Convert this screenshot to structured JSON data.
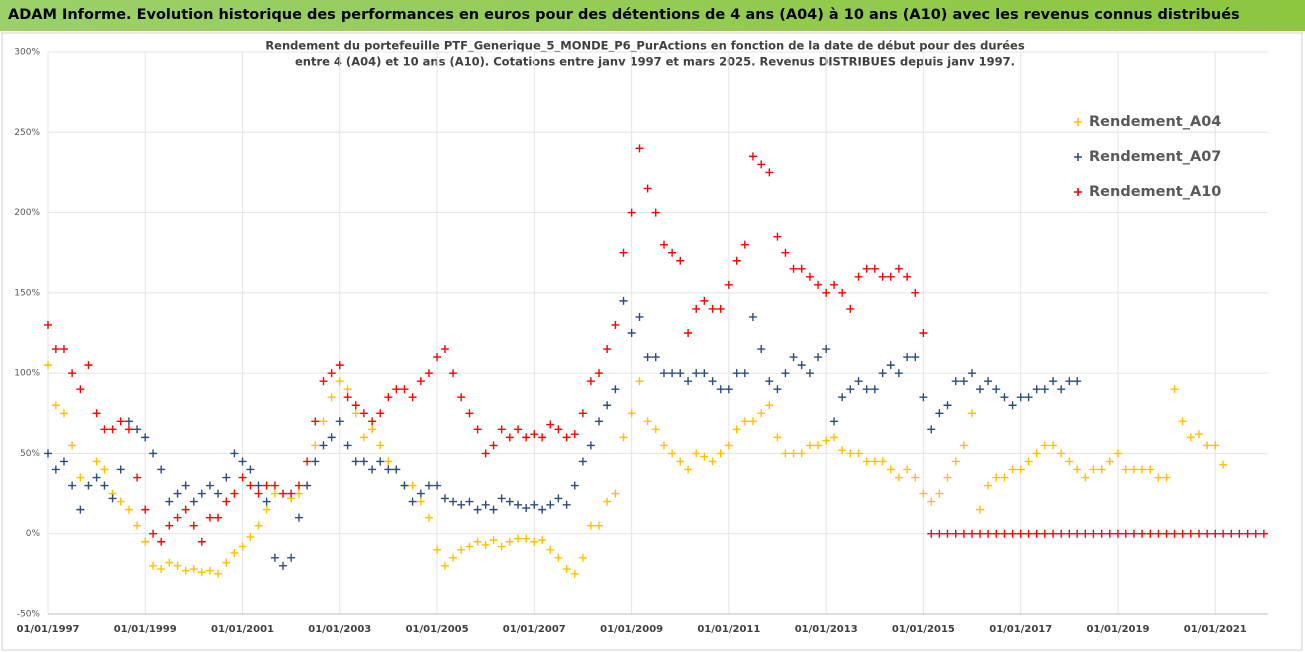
{
  "header": "ADAM Informe. Evolution historique des performances en euros pour des détentions de 4 ans (A04) à 10 ans (A10) avec les revenus connus distribués",
  "chart_data": {
    "type": "scatter",
    "title": [
      "Rendement du portefeuille PTF_Generique_5_MONDE_P6_PurActions  en fonction de la date de début pour des durées",
      "entre 4 (A04) et 10 ans (A10). Cotations  entre janv 1997 et mars 2025. Revenus DISTRIBUES depuis janv 1997."
    ],
    "x": [
      "1997-01-01",
      "1997-03-01",
      "1997-05-01",
      "1997-07-01",
      "1997-09-01",
      "1997-11-01",
      "1998-01-01",
      "1998-03-01",
      "1998-05-01",
      "1998-07-01",
      "1998-09-01",
      "1998-11-01",
      "1999-01-01",
      "1999-03-01",
      "1999-05-01",
      "1999-07-01",
      "1999-09-01",
      "1999-11-01",
      "2000-01-01",
      "2000-03-01",
      "2000-05-01",
      "2000-07-01",
      "2000-09-01",
      "2000-11-01",
      "2001-01-01",
      "2001-03-01",
      "2001-05-01",
      "2001-07-01",
      "2001-09-01",
      "2001-11-01",
      "2002-01-01",
      "2002-03-01",
      "2002-05-01",
      "2002-07-01",
      "2002-09-01",
      "2002-11-01",
      "2003-01-01",
      "2003-03-01",
      "2003-05-01",
      "2003-07-01",
      "2003-09-01",
      "2003-11-01",
      "2004-01-01",
      "2004-03-01",
      "2004-05-01",
      "2004-07-01",
      "2004-09-01",
      "2004-11-01",
      "2005-01-01",
      "2005-03-01",
      "2005-05-01",
      "2005-07-01",
      "2005-09-01",
      "2005-11-01",
      "2006-01-01",
      "2006-03-01",
      "2006-05-01",
      "2006-07-01",
      "2006-09-01",
      "2006-11-01",
      "2007-01-01",
      "2007-03-01",
      "2007-05-01",
      "2007-07-01",
      "2007-09-01",
      "2007-11-01",
      "2008-01-01",
      "2008-03-01",
      "2008-05-01",
      "2008-07-01",
      "2008-09-01",
      "2008-11-01",
      "2009-01-01",
      "2009-03-01",
      "2009-05-01",
      "2009-07-01",
      "2009-09-01",
      "2009-11-01",
      "2010-01-01",
      "2010-03-01",
      "2010-05-01",
      "2010-07-01",
      "2010-09-01",
      "2010-11-01",
      "2011-01-01",
      "2011-03-01",
      "2011-05-01",
      "2011-07-01",
      "2011-09-01",
      "2011-11-01",
      "2012-01-01",
      "2012-03-01",
      "2012-05-01",
      "2012-07-01",
      "2012-09-01",
      "2012-11-01",
      "2013-01-01",
      "2013-03-01",
      "2013-05-01",
      "2013-07-01",
      "2013-09-01",
      "2013-11-01",
      "2014-01-01",
      "2014-03-01",
      "2014-05-01",
      "2014-07-01",
      "2014-09-01",
      "2014-11-01",
      "2015-01-01",
      "2015-03-01",
      "2015-05-01",
      "2015-07-01",
      "2015-09-01",
      "2015-11-01",
      "2016-01-01",
      "2016-03-01",
      "2016-05-01",
      "2016-07-01",
      "2016-09-01",
      "2016-11-01",
      "2017-01-01",
      "2017-03-01",
      "2017-05-01",
      "2017-07-01",
      "2017-09-01",
      "2017-11-01",
      "2018-01-01",
      "2018-03-01",
      "2018-05-01",
      "2018-07-01",
      "2018-09-01",
      "2018-11-01",
      "2019-01-01",
      "2019-03-01",
      "2019-05-01",
      "2019-07-01",
      "2019-09-01",
      "2019-11-01",
      "2020-01-01",
      "2020-03-01",
      "2020-05-01",
      "2020-07-01",
      "2020-09-01",
      "2020-11-01",
      "2021-01-01",
      "2021-03-01",
      "2021-05-01",
      "2021-07-01",
      "2021-09-01",
      "2021-11-01",
      "2022-01-01"
    ],
    "series": [
      {
        "name": "Rendement_A04",
        "color": "#ffc000",
        "values": [
          105,
          80,
          75,
          55,
          35,
          30,
          45,
          40,
          25,
          20,
          15,
          5,
          -5,
          -20,
          -22,
          -18,
          -20,
          -23,
          -22,
          -24,
          -23,
          -25,
          -18,
          -12,
          -8,
          -2,
          5,
          15,
          25,
          25,
          22,
          25,
          30,
          55,
          70,
          85,
          95,
          90,
          75,
          60,
          65,
          55,
          45,
          40,
          30,
          30,
          20,
          10,
          -10,
          -20,
          -15,
          -10,
          -8,
          -5,
          -7,
          -4,
          -8,
          -5,
          -3,
          -3,
          -5,
          -4,
          -10,
          -15,
          -22,
          -25,
          -15,
          5,
          5,
          20,
          25,
          60,
          75,
          95,
          70,
          65,
          55,
          50,
          45,
          40,
          50,
          48,
          45,
          50,
          55,
          65,
          70,
          70,
          75,
          80,
          60,
          50,
          50,
          50,
          55,
          55,
          58,
          60,
          52,
          50,
          50,
          45,
          45,
          45,
          40,
          35,
          40,
          35,
          25,
          20,
          25,
          35,
          45,
          55,
          75,
          15,
          30,
          35,
          35,
          40,
          40,
          45,
          50,
          55,
          55,
          50,
          45,
          40,
          35,
          40,
          40,
          45,
          50,
          40,
          40,
          40,
          40,
          35,
          35,
          90,
          70,
          60,
          62,
          55,
          55,
          43,
          null,
          null,
          null,
          null,
          null
        ]
      },
      {
        "name": "Rendement_A07",
        "color": "#2f4b7c",
        "values": [
          50,
          40,
          45,
          30,
          15,
          30,
          35,
          30,
          22,
          40,
          70,
          65,
          60,
          50,
          40,
          20,
          25,
          30,
          20,
          25,
          30,
          25,
          35,
          50,
          45,
          40,
          30,
          20,
          -15,
          -20,
          -15,
          10,
          30,
          45,
          55,
          60,
          70,
          55,
          45,
          45,
          40,
          45,
          40,
          40,
          30,
          20,
          25,
          30,
          30,
          22,
          20,
          18,
          20,
          15,
          18,
          15,
          22,
          20,
          18,
          16,
          18,
          15,
          18,
          22,
          18,
          30,
          45,
          55,
          70,
          80,
          90,
          145,
          125,
          135,
          110,
          110,
          100,
          100,
          100,
          95,
          100,
          100,
          95,
          90,
          90,
          100,
          100,
          135,
          115,
          95,
          90,
          100,
          110,
          105,
          100,
          110,
          115,
          70,
          85,
          90,
          95,
          90,
          90,
          100,
          105,
          100,
          110,
          110,
          85,
          65,
          75,
          80,
          95,
          95,
          100,
          90,
          95,
          90,
          85,
          80,
          85,
          85,
          90,
          90,
          95,
          90,
          95,
          95,
          null,
          null,
          null,
          null,
          null,
          null,
          null,
          null,
          null,
          null,
          null,
          null,
          null,
          null,
          null,
          null,
          null,
          null,
          null,
          null,
          null,
          null,
          null
        ]
      },
      {
        "name": "Rendement_A10",
        "color": "#ff0000",
        "values": [
          130,
          115,
          115,
          100,
          90,
          105,
          75,
          65,
          65,
          70,
          65,
          35,
          15,
          0,
          -5,
          5,
          10,
          15,
          5,
          -5,
          10,
          10,
          20,
          25,
          35,
          30,
          25,
          30,
          30,
          25,
          25,
          30,
          45,
          70,
          95,
          100,
          105,
          85,
          80,
          75,
          70,
          75,
          85,
          90,
          90,
          85,
          95,
          100,
          110,
          115,
          100,
          85,
          75,
          65,
          50,
          55,
          65,
          60,
          65,
          60,
          62,
          60,
          68,
          65,
          60,
          62,
          75,
          95,
          100,
          115,
          130,
          175,
          200,
          240,
          215,
          200,
          180,
          175,
          170,
          125,
          140,
          145,
          140,
          140,
          155,
          170,
          180,
          235,
          230,
          225,
          185,
          175,
          165,
          165,
          160,
          155,
          150,
          155,
          150,
          140,
          160,
          165,
          165,
          160,
          160,
          165,
          160,
          150,
          125,
          0,
          0,
          0,
          0,
          0,
          0,
          0,
          0,
          0,
          0,
          0,
          0,
          0,
          0,
          0,
          0,
          0,
          0,
          0,
          0,
          0,
          0,
          0,
          0,
          0,
          0,
          0,
          0,
          0,
          0,
          0,
          0,
          0,
          0,
          0,
          0,
          0,
          0,
          0,
          0,
          0,
          0
        ]
      }
    ],
    "xlim": [
      "1997-01-01",
      "2022-02-01"
    ],
    "xticks": [
      {
        "value": "1997-01-01",
        "label": "01/01/1997"
      },
      {
        "value": "1999-01-01",
        "label": "01/01/1999"
      },
      {
        "value": "2001-01-01",
        "label": "01/01/2001"
      },
      {
        "value": "2003-01-01",
        "label": "01/01/2003"
      },
      {
        "value": "2005-01-01",
        "label": "01/01/2005"
      },
      {
        "value": "2007-01-01",
        "label": "01/01/2007"
      },
      {
        "value": "2009-01-01",
        "label": "01/01/2009"
      },
      {
        "value": "2011-01-01",
        "label": "01/01/2011"
      },
      {
        "value": "2013-01-01",
        "label": "01/01/2013"
      },
      {
        "value": "2015-01-01",
        "label": "01/01/2015"
      },
      {
        "value": "2017-01-01",
        "label": "01/01/2017"
      },
      {
        "value": "2019-01-01",
        "label": "01/01/2019"
      },
      {
        "value": "2021-01-01",
        "label": "01/01/2021"
      }
    ],
    "ylim": [
      -50,
      300
    ],
    "yticks": [
      {
        "value": -50,
        "label": "-50%"
      },
      {
        "value": 0,
        "label": "0%"
      },
      {
        "value": 50,
        "label": "50%"
      },
      {
        "value": 100,
        "label": "100%"
      },
      {
        "value": 150,
        "label": "150%"
      },
      {
        "value": 200,
        "label": "200%"
      },
      {
        "value": 250,
        "label": "250%"
      },
      {
        "value": 300,
        "label": "300%"
      }
    ],
    "grid": true,
    "legend": "right"
  }
}
